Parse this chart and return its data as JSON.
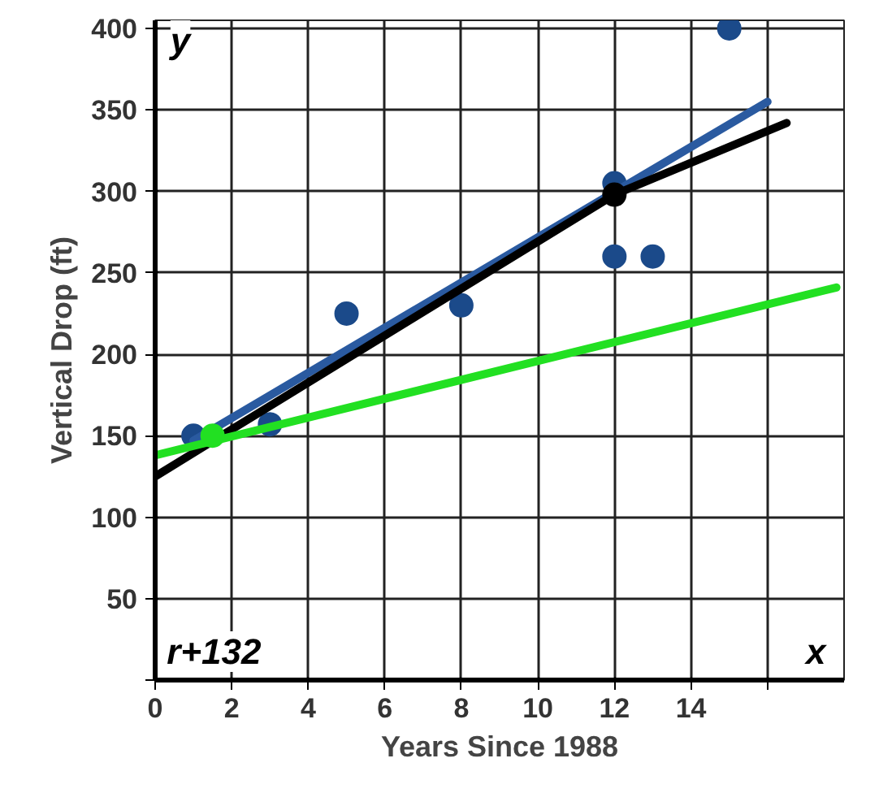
{
  "chart_data": {
    "type": "scatter",
    "xlabel": "Years Since 1988",
    "ylabel": "Vertical Drop (ft)",
    "annotations": [
      "y",
      "x",
      "r+132"
    ],
    "xlim": [
      0,
      18
    ],
    "ylim": [
      0,
      405
    ],
    "xticks": [
      0,
      2,
      4,
      6,
      8,
      10,
      12,
      14,
      {
        "value": 16,
        "label": null
      }
    ],
    "yticks": [
      {
        "value": 0,
        "label": null
      },
      50,
      100,
      150,
      200,
      250,
      300,
      350,
      400
    ],
    "grid": true,
    "series": [
      {
        "color": "#1b4a8a",
        "marker": "circle",
        "x": [
          1,
          3,
          5,
          8,
          12,
          12,
          13,
          15
        ],
        "values": [
          150,
          157,
          225,
          230,
          305,
          260,
          260,
          400
        ]
      },
      {
        "type": "line",
        "color": "#2a5aa0",
        "x": [
          1,
          16
        ],
        "values": [
          147,
          355
        ]
      },
      {
        "type": "line",
        "color": "#000000",
        "x": [
          0,
          12,
          16.5
        ],
        "values": [
          125,
          298,
          342
        ]
      },
      {
        "type": "line",
        "color": "#22e022",
        "x": [
          0,
          17.8
        ],
        "values": [
          138,
          241
        ]
      },
      {
        "color": "#22e022",
        "marker": "circle",
        "x": [
          1.5
        ],
        "values": [
          150
        ]
      },
      {
        "color": "#000000",
        "marker": "circle",
        "x": [
          12
        ],
        "values": [
          298
        ]
      }
    ]
  }
}
